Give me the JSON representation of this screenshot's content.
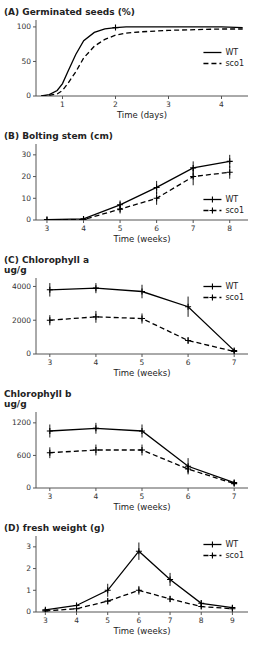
{
  "chart_data": [
    {
      "type": "line",
      "title": "(A) Germinated seeds (%)",
      "xlabel": "Time (days)",
      "x": [
        0.6,
        0.75,
        0.9,
        1.0,
        1.1,
        1.25,
        1.4,
        1.6,
        1.8,
        2.0,
        2.2,
        2.5,
        3.0,
        3.5,
        4.0,
        4.4
      ],
      "series": [
        {
          "name": "WT",
          "color": "#000000",
          "line_style": "solid",
          "values": [
            0,
            2,
            8,
            18,
            35,
            60,
            80,
            92,
            97,
            99,
            100,
            100,
            100,
            100,
            100,
            99
          ]
        },
        {
          "name": "sco1",
          "color": "#000000",
          "line_style": "dashed",
          "values": [
            0,
            1,
            3,
            8,
            18,
            35,
            55,
            72,
            82,
            88,
            91,
            93,
            95,
            96,
            97,
            97
          ]
        },
        {
          "type": "scatter",
          "color": "#000000",
          "marker": "plus",
          "x": [
            2.0
          ],
          "values": [
            99
          ]
        }
      ],
      "xlim": [
        0.5,
        4.5
      ],
      "ylim": [
        0,
        110
      ],
      "xticks": [
        1,
        2,
        3,
        4
      ],
      "yticks": [
        0,
        50,
        100
      ],
      "legend": "center right"
    },
    {
      "type": "line",
      "title": "(B) Bolting stem (cm)",
      "xlabel": "Time (weeks)",
      "x": [
        3,
        4,
        5,
        6,
        7,
        8
      ],
      "series": [
        {
          "name": "WT",
          "color": "#000000",
          "line_style": "solid",
          "marker": "plus",
          "values": [
            0.2,
            0.5,
            7,
            15,
            24,
            27
          ],
          "errors": [
            0.1,
            0.3,
            2,
            3,
            3,
            3
          ]
        },
        {
          "name": "sco1",
          "color": "#000000",
          "line_style": "dashed",
          "marker": "plus",
          "values": [
            0.1,
            0.2,
            5,
            10,
            20,
            22
          ],
          "errors": [
            0.1,
            0.2,
            2,
            3,
            4,
            3
          ]
        }
      ],
      "xlim": [
        2.7,
        8.5
      ],
      "ylim": [
        0,
        35
      ],
      "xticks": [
        3,
        4,
        5,
        6,
        7,
        8
      ],
      "yticks": [
        0,
        10,
        20,
        30
      ],
      "legend": "lower right"
    },
    {
      "type": "line",
      "title": "(C) Chlorophyll a",
      "subtitle": "ug/g",
      "xlabel": "Time (weeks)",
      "x": [
        3,
        4,
        5,
        6,
        7
      ],
      "series": [
        {
          "name": "WT",
          "color": "#000000",
          "line_style": "solid",
          "marker": "plus",
          "values": [
            3800,
            3900,
            3700,
            2800,
            200
          ],
          "errors": [
            400,
            300,
            400,
            600,
            100
          ]
        },
        {
          "name": "sco1",
          "color": "#000000",
          "line_style": "dashed",
          "marker": "plus",
          "values": [
            2000,
            2200,
            2100,
            800,
            150
          ],
          "errors": [
            300,
            350,
            300,
            200,
            80
          ]
        }
      ],
      "xlim": [
        2.7,
        7.3
      ],
      "ylim": [
        0,
        4500
      ],
      "xticks": [
        3,
        4,
        5,
        6,
        7
      ],
      "yticks": [
        0,
        2000,
        4000
      ],
      "legend": "upper right"
    },
    {
      "type": "line",
      "title": "Chlorophyll b",
      "subtitle": "ug/g",
      "xlabel": "Time (weeks)",
      "x": [
        3,
        4,
        5,
        6,
        7
      ],
      "series": [
        {
          "color": "#000000",
          "line_style": "solid",
          "marker": "plus",
          "values": [
            1050,
            1100,
            1050,
            400,
            100
          ],
          "errors": [
            120,
            100,
            120,
            150,
            50
          ]
        },
        {
          "color": "#000000",
          "line_style": "dashed",
          "marker": "plus",
          "values": [
            650,
            700,
            700,
            350,
            80
          ],
          "errors": [
            100,
            100,
            100,
            80,
            40
          ]
        }
      ],
      "xlim": [
        2.7,
        7.3
      ],
      "ylim": [
        0,
        1400
      ],
      "xticks": [
        3,
        4,
        5,
        6,
        7
      ],
      "yticks": [
        0,
        600,
        1200
      ]
    },
    {
      "type": "line",
      "title": "(D) fresh weight (g)",
      "xlabel": "Time (weeks)",
      "x": [
        3,
        4,
        5,
        6,
        7,
        8,
        9
      ],
      "series": [
        {
          "name": "WT",
          "color": "#000000",
          "line_style": "solid",
          "marker": "plus",
          "values": [
            0.1,
            0.3,
            1.0,
            2.8,
            1.5,
            0.4,
            0.2
          ],
          "errors": [
            0.05,
            0.1,
            0.3,
            0.4,
            0.3,
            0.15,
            0.1
          ]
        },
        {
          "name": "sco1",
          "color": "#000000",
          "line_style": "dashed",
          "marker": "plus",
          "values": [
            0.05,
            0.15,
            0.5,
            1.0,
            0.6,
            0.25,
            0.15
          ],
          "errors": [
            0.03,
            0.08,
            0.15,
            0.2,
            0.15,
            0.1,
            0.08
          ]
        }
      ],
      "xlim": [
        2.7,
        9.5
      ],
      "ylim": [
        0,
        3.5
      ],
      "xticks": [
        3,
        4,
        5,
        6,
        7,
        8,
        9
      ],
      "yticks": [
        0,
        1,
        2,
        3
      ],
      "legend": "upper right"
    }
  ]
}
